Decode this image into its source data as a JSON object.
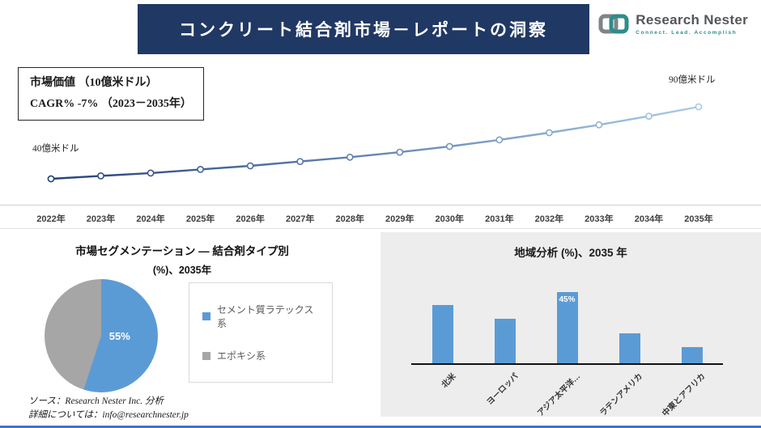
{
  "header": {
    "title": "コンクリート結合剤市場－レポートの洞察",
    "logo": {
      "name": "Research Nester",
      "tagline": "Connect. Lead. Accomplish"
    }
  },
  "line_chart_info": {
    "line1": "市場価値 （10億米ドル）",
    "line2": "CAGR% -7% （2023－2035年）",
    "start_label": "40億米ドル",
    "end_label": "90億米ドル"
  },
  "chart_data": [
    {
      "type": "line",
      "title": "市場価値（10億米ドル）",
      "x": [
        "2022年",
        "2023年",
        "2024年",
        "2025年",
        "2026年",
        "2027年",
        "2028年",
        "2029年",
        "2030年",
        "2031年",
        "2032年",
        "2033年",
        "2034年",
        "2035年"
      ],
      "values": [
        40,
        42,
        44,
        46.5,
        49,
        52,
        55,
        58.5,
        62.5,
        67,
        72,
        77.5,
        83.5,
        90
      ],
      "ylabel": "億米ドル",
      "ylim": [
        40,
        90
      ],
      "start_annotation": "40億米ドル",
      "end_annotation": "90億米ドル",
      "color_start": "#24417c",
      "color_end": "#a8cbe8",
      "grid": false,
      "legend_position": "none"
    },
    {
      "type": "pie",
      "title": "市場セグメンテーション ― 結合剤タイプ別",
      "subtitle": "(%)、2035年",
      "slices": [
        {
          "label": "セメント質ラテックス系",
          "value": 55,
          "color": "#5b9bd5"
        },
        {
          "label": "エポキシ系",
          "value": 45,
          "color": "#a6a6a6"
        }
      ],
      "data_label": "55%",
      "legend_position": "right"
    },
    {
      "type": "bar",
      "title": "地域分析 (%)、2035 年",
      "categories": [
        "北米",
        "ヨーロッパ",
        "アジア太平洋…",
        "ラテンアメリカ",
        "中東とアフリカ"
      ],
      "values": [
        37,
        28,
        45,
        19,
        10
      ],
      "bar_label": {
        "index": 2,
        "text": "45%"
      },
      "color": "#5b9bd5",
      "grid": false,
      "legend_position": "none"
    }
  ],
  "footer": {
    "line1": "ソース：Research Nester Inc. 分析",
    "line2": "詳細については：info@researchnester.jp"
  }
}
